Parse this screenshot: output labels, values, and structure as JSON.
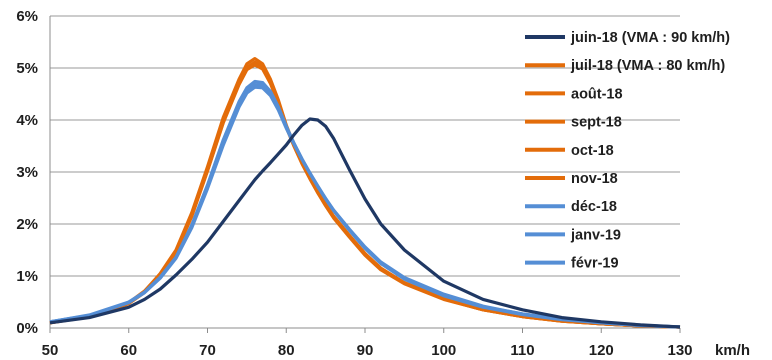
{
  "chart_data": {
    "type": "line",
    "title": "",
    "xlabel": "",
    "ylabel": "",
    "x_unit_label": "km/h",
    "xlim": [
      50,
      130
    ],
    "ylim": [
      0,
      0.06
    ],
    "x_ticks": [
      "50",
      "60",
      "70",
      "80",
      "90",
      "100",
      "110",
      "120",
      "130"
    ],
    "y_ticks": [
      "0%",
      "1%",
      "2%",
      "3%",
      "4%",
      "5%",
      "6%"
    ],
    "grid": "horizontal",
    "legend_position": "right",
    "x": [
      50,
      55,
      60,
      62,
      64,
      66,
      68,
      70,
      72,
      74,
      75,
      76,
      77,
      78,
      79,
      80,
      81,
      82,
      83,
      84,
      85,
      86,
      88,
      90,
      92,
      95,
      100,
      105,
      110,
      115,
      120,
      125,
      130
    ],
    "series": [
      {
        "name": "juin-18 (VMA : 90 km/h)",
        "color": "#1f3864",
        "values": [
          0.001,
          0.002,
          0.004,
          0.0055,
          0.0075,
          0.0102,
          0.0132,
          0.0165,
          0.0205,
          0.0245,
          0.0265,
          0.0285,
          0.0302,
          0.0318,
          0.0335,
          0.0352,
          0.0372,
          0.039,
          0.0402,
          0.04,
          0.0388,
          0.0365,
          0.0305,
          0.0248,
          0.02,
          0.015,
          0.009,
          0.0055,
          0.0035,
          0.002,
          0.0012,
          0.0006,
          0.0002
        ]
      },
      {
        "name": "juil-18 (VMA : 80 km/h)",
        "color": "#e36c0a",
        "values": [
          0.001,
          0.0022,
          0.0048,
          0.007,
          0.0105,
          0.015,
          0.0222,
          0.031,
          0.0405,
          0.0478,
          0.0508,
          0.0518,
          0.0508,
          0.0478,
          0.0438,
          0.039,
          0.0352,
          0.0318,
          0.0288,
          0.026,
          0.0235,
          0.0212,
          0.0175,
          0.014,
          0.0112,
          0.0085,
          0.0055,
          0.0035,
          0.0022,
          0.0013,
          0.0008,
          0.0004,
          0.0002
        ]
      },
      {
        "name": "août-18",
        "color": "#e36c0a",
        "values": [
          0.0011,
          0.0023,
          0.0049,
          0.0071,
          0.0104,
          0.0148,
          0.0218,
          0.0305,
          0.0398,
          0.0472,
          0.0501,
          0.0511,
          0.0502,
          0.0474,
          0.0435,
          0.0389,
          0.0352,
          0.0319,
          0.029,
          0.0262,
          0.0238,
          0.0215,
          0.0178,
          0.0143,
          0.0115,
          0.0087,
          0.0057,
          0.0036,
          0.0023,
          0.0014,
          0.0008,
          0.0004,
          0.0002
        ]
      },
      {
        "name": "sept-18",
        "color": "#e36c0a",
        "values": [
          0.001,
          0.0021,
          0.0047,
          0.0068,
          0.0101,
          0.0145,
          0.0215,
          0.0302,
          0.0395,
          0.0468,
          0.0497,
          0.0506,
          0.0498,
          0.047,
          0.0432,
          0.0386,
          0.0349,
          0.0316,
          0.0287,
          0.026,
          0.0236,
          0.0213,
          0.0176,
          0.0141,
          0.0113,
          0.0086,
          0.0056,
          0.0035,
          0.0022,
          0.0013,
          0.0008,
          0.0004,
          0.0002
        ]
      },
      {
        "name": "oct-18",
        "color": "#e36c0a",
        "values": [
          0.001,
          0.0022,
          0.0048,
          0.0069,
          0.0102,
          0.0146,
          0.0216,
          0.0303,
          0.0396,
          0.047,
          0.0499,
          0.0508,
          0.05,
          0.0472,
          0.0433,
          0.0387,
          0.035,
          0.0317,
          0.0288,
          0.0261,
          0.0237,
          0.0214,
          0.0177,
          0.0142,
          0.0114,
          0.0086,
          0.0056,
          0.0035,
          0.0022,
          0.0013,
          0.0008,
          0.0004,
          0.0002
        ]
      },
      {
        "name": "nov-18",
        "color": "#e36c0a",
        "values": [
          0.001,
          0.0022,
          0.0048,
          0.007,
          0.0103,
          0.0147,
          0.0217,
          0.0304,
          0.0397,
          0.0471,
          0.05,
          0.051,
          0.0501,
          0.0473,
          0.0434,
          0.0388,
          0.0351,
          0.0318,
          0.0289,
          0.0262,
          0.0238,
          0.0215,
          0.0178,
          0.0143,
          0.0115,
          0.0087,
          0.0057,
          0.0036,
          0.0023,
          0.0014,
          0.0008,
          0.0004,
          0.0002
        ]
      },
      {
        "name": "déc-18",
        "color": "#558ed5",
        "values": [
          0.0012,
          0.0024,
          0.0049,
          0.0068,
          0.0097,
          0.0136,
          0.0198,
          0.0275,
          0.0362,
          0.0435,
          0.0462,
          0.0474,
          0.0472,
          0.0455,
          0.0425,
          0.0388,
          0.0355,
          0.0325,
          0.0298,
          0.0272,
          0.0248,
          0.0226,
          0.0188,
          0.0153,
          0.0124,
          0.0094,
          0.0062,
          0.004,
          0.0026,
          0.0016,
          0.001,
          0.0005,
          0.0002
        ]
      },
      {
        "name": "janv-19",
        "color": "#558ed5",
        "values": [
          0.0012,
          0.0025,
          0.005,
          0.0069,
          0.0098,
          0.0136,
          0.0196,
          0.0272,
          0.0357,
          0.043,
          0.0457,
          0.0468,
          0.0467,
          0.0451,
          0.0422,
          0.0386,
          0.0354,
          0.0325,
          0.0298,
          0.0273,
          0.0249,
          0.0227,
          0.019,
          0.0155,
          0.0126,
          0.0096,
          0.0064,
          0.0041,
          0.0027,
          0.0017,
          0.001,
          0.0005,
          0.0002
        ]
      },
      {
        "name": "févr-19",
        "color": "#558ed5",
        "values": [
          0.0012,
          0.0024,
          0.0049,
          0.0068,
          0.0096,
          0.0134,
          0.0193,
          0.0268,
          0.0352,
          0.0425,
          0.0452,
          0.0463,
          0.0462,
          0.0447,
          0.0419,
          0.0384,
          0.0353,
          0.0324,
          0.0297,
          0.0272,
          0.0249,
          0.0227,
          0.019,
          0.0156,
          0.0127,
          0.0097,
          0.0065,
          0.0042,
          0.0027,
          0.0017,
          0.001,
          0.0005,
          0.0002
        ]
      }
    ]
  }
}
